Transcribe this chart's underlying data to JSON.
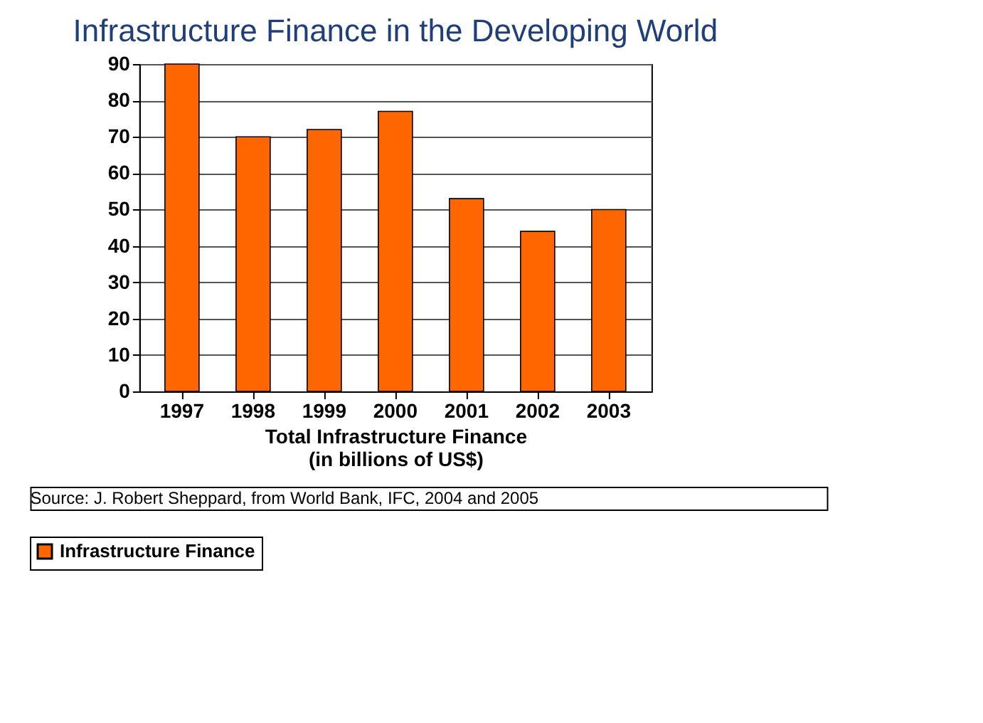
{
  "chart_data": {
    "type": "bar",
    "title": "Infrastructure Finance in the Developing World",
    "categories": [
      "1997",
      "1998",
      "1999",
      "2000",
      "2001",
      "2002",
      "2003"
    ],
    "series": [
      {
        "name": "Infrastructure Finance",
        "color": "#ff6600",
        "values": [
          90,
          70,
          72,
          77,
          53,
          44,
          50
        ]
      }
    ],
    "xlabel": "Total Infrastructure Finance\n(in billions of US$)",
    "ylim": [
      0,
      90
    ],
    "yticks": [
      0,
      10,
      20,
      30,
      40,
      50,
      60,
      70,
      80,
      90
    ],
    "grid": "y",
    "legend": "bottom",
    "annotations": [
      "Source: J. Robert Sheppard, from World Bank, IFC, 2004 and 2005"
    ]
  }
}
